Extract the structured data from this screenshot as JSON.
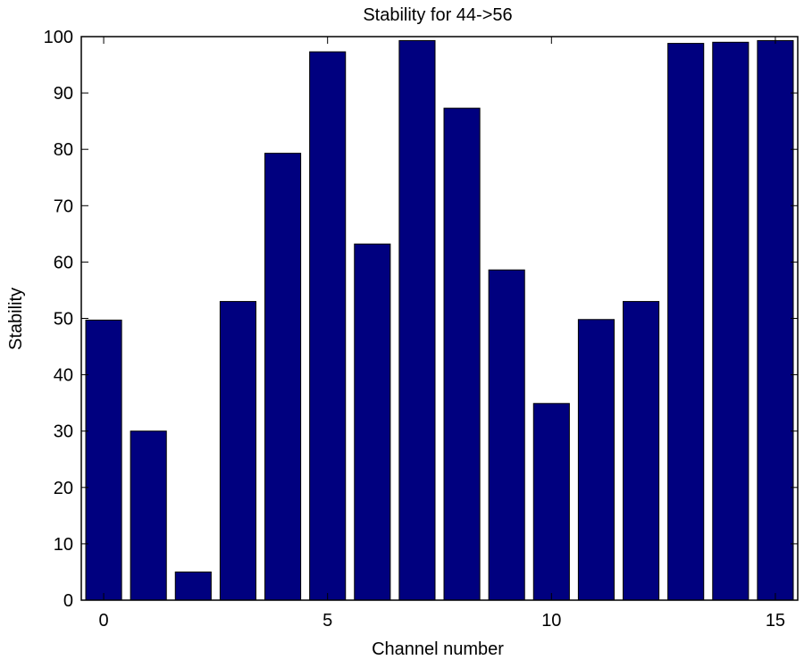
{
  "chart_data": {
    "type": "bar",
    "title": "Stability for 44->56",
    "xlabel": "Channel number",
    "ylabel": "Stability",
    "categories": [
      0,
      1,
      2,
      3,
      4,
      5,
      6,
      7,
      8,
      9,
      10,
      11,
      12,
      13,
      14,
      15
    ],
    "values": [
      49.7,
      30,
      5,
      53,
      79.3,
      97.3,
      63.2,
      99.3,
      87.3,
      58.6,
      34.9,
      49.8,
      53,
      98.8,
      99,
      99.3
    ],
    "xlim": [
      -0.5,
      15.5
    ],
    "ylim": [
      0,
      100
    ],
    "xticks": [
      0,
      5,
      10,
      15
    ],
    "yticks": [
      0,
      10,
      20,
      30,
      40,
      50,
      60,
      70,
      80,
      90,
      100
    ],
    "grid": false,
    "legend": "none",
    "bar_color": "#00007F",
    "bar_edge_color": "#000000"
  }
}
